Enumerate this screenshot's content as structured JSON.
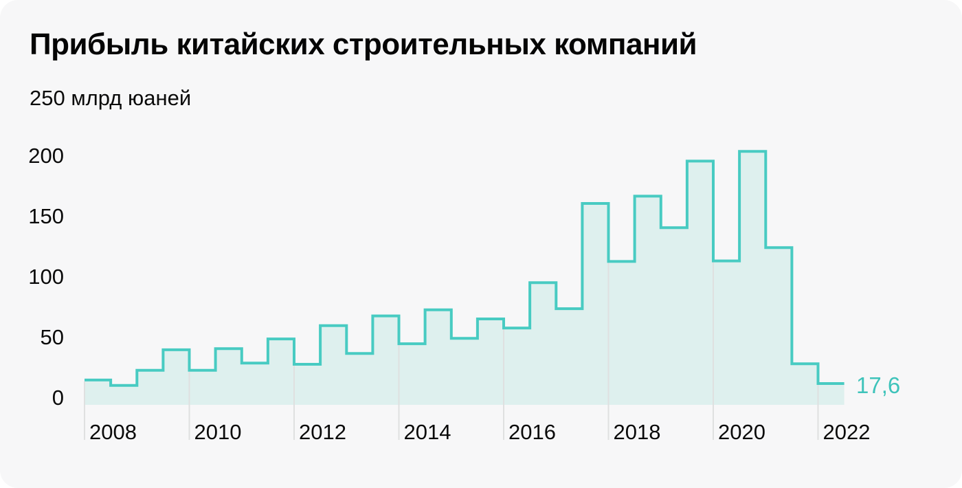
{
  "card": {
    "title": "Прибыль китайских строительных компаний",
    "unit_label": "250 млрд юаней"
  },
  "chart_data": {
    "type": "area",
    "step": true,
    "title": "Прибыль китайских строительных компаний",
    "ylabel": "250 млрд юаней",
    "xlabel": "",
    "unit": "млрд юаней",
    "categories": [
      "2008 H1",
      "2008 H2",
      "2009 H1",
      "2009 H2",
      "2010 H1",
      "2010 H2",
      "2011 H1",
      "2011 H2",
      "2012 H1",
      "2012 H2",
      "2013 H1",
      "2013 H2",
      "2014 H1",
      "2014 H2",
      "2015 H1",
      "2015 H2",
      "2016 H1",
      "2016 H2",
      "2017 H1",
      "2017 H2",
      "2018 H1",
      "2018 H2",
      "2019 H1",
      "2019 H2",
      "2020 H1",
      "2020 H2",
      "2021 H1",
      "2021 H2",
      "2022 H1"
    ],
    "values": [
      20.5,
      16,
      28.5,
      45.5,
      28.5,
      46.5,
      34.5,
      54.5,
      33.5,
      65.5,
      42.5,
      73.5,
      50.5,
      78.5,
      55,
      71,
      63.5,
      101,
      79.5,
      166.5,
      118.5,
      172.5,
      146.5,
      201.5,
      119,
      209.5,
      130,
      34,
      17.6
    ],
    "xticks": [
      2008,
      2010,
      2012,
      2014,
      2016,
      2018,
      2020,
      2022
    ],
    "yticks": [
      0,
      50,
      100,
      150,
      200
    ],
    "ytick_top_label": "250 млрд юаней",
    "ylim": [
      0,
      250
    ],
    "points_per_year": 2,
    "last_value_label": "17,6",
    "grid": "vertical-ticks-only",
    "legend": "none",
    "colors": {
      "line": "#48cbc2",
      "fill": "#def0ee",
      "grid": "#dfe0e0",
      "text": "#0a0a0a",
      "value_label": "#3ec3ba",
      "card_bg": "#f7f7f8",
      "page_bg": "#ffffff"
    }
  }
}
